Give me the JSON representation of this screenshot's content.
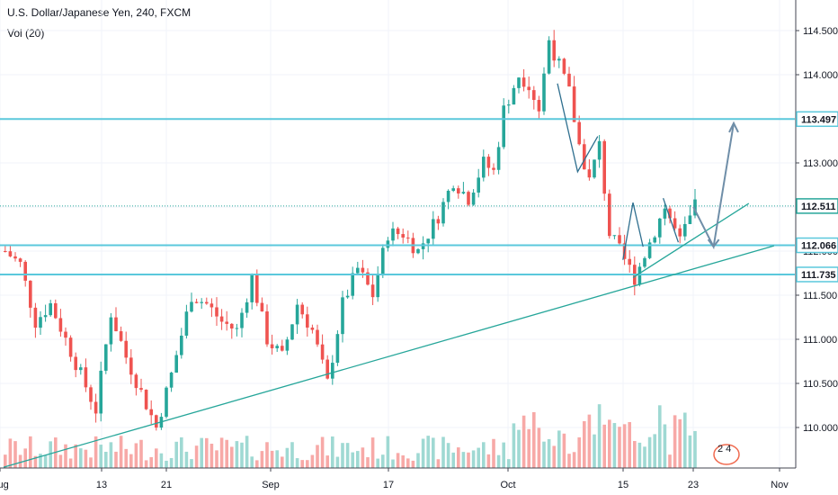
{
  "header": {
    "title": "U.S. Dollar/Japanese Yen, 240, FXCM",
    "volume": "Vol (20)"
  },
  "colors": {
    "up": "#26a69a",
    "down": "#ef5350",
    "line": "#5bc8dc",
    "trend": "#26a69a",
    "arrow": "#6f8ea8"
  },
  "logo": "2 4",
  "chart_data": {
    "type": "candlestick",
    "y_ticks": [
      "114.500",
      "114.000",
      "113.500",
      "113.000",
      "112.500",
      "112.000",
      "111.500",
      "111.000",
      "110.500",
      "110.000"
    ],
    "ylim": [
      109.6,
      114.85
    ],
    "x_ticks": [
      "Aug",
      "13",
      "21",
      "Sep",
      "17",
      "Oct",
      "15",
      "23",
      "Nov"
    ],
    "price_labels": [
      {
        "text": "113.497",
        "value": 113.497,
        "style": "line"
      },
      {
        "text": "112.511",
        "value": 112.511,
        "style": "dotted"
      },
      {
        "text": "112.066",
        "value": 112.066,
        "style": "line"
      },
      {
        "text": "111.735",
        "value": 111.735,
        "style": "line"
      }
    ],
    "close_path": [
      [
        0,
        112.0
      ],
      [
        3,
        111.85
      ],
      [
        6,
        111.2
      ],
      [
        9,
        111.4
      ],
      [
        12,
        111.0
      ],
      [
        15,
        110.6
      ],
      [
        18,
        110.2
      ],
      [
        21,
        111.3
      ],
      [
        24,
        110.8
      ],
      [
        27,
        110.4
      ],
      [
        30,
        110.0
      ],
      [
        33,
        110.6
      ],
      [
        37,
        111.5
      ],
      [
        40,
        111.4
      ],
      [
        43,
        111.2
      ],
      [
        46,
        111.1
      ],
      [
        49,
        111.7
      ],
      [
        52,
        111.0
      ],
      [
        55,
        110.8
      ],
      [
        58,
        111.4
      ],
      [
        61,
        111.1
      ],
      [
        64,
        110.5
      ],
      [
        67,
        111.4
      ],
      [
        70,
        111.8
      ],
      [
        73,
        111.5
      ],
      [
        76,
        112.2
      ],
      [
        79,
        112.2
      ],
      [
        82,
        112.0
      ],
      [
        86,
        112.4
      ],
      [
        89,
        112.8
      ],
      [
        92,
        112.6
      ],
      [
        95,
        113.0
      ],
      [
        97,
        112.9
      ],
      [
        99,
        113.6
      ],
      [
        102,
        114.0
      ],
      [
        104,
        113.9
      ],
      [
        106,
        113.6
      ],
      [
        108,
        114.4
      ],
      [
        110,
        114.1
      ],
      [
        112,
        113.8
      ],
      [
        114,
        113.2
      ],
      [
        116,
        112.8
      ],
      [
        118,
        113.2
      ],
      [
        120,
        112.2
      ],
      [
        123,
        111.9
      ],
      [
        125,
        111.7
      ],
      [
        128,
        112.1
      ],
      [
        131,
        112.5
      ],
      [
        134,
        112.1
      ],
      [
        137,
        112.5
      ]
    ],
    "projection": [
      [
        137,
        112.5
      ],
      [
        141,
        112.05
      ],
      [
        145,
        113.45
      ]
    ],
    "horizontal_levels": [
      113.497,
      112.511,
      112.066,
      111.735
    ],
    "trendlines": [
      {
        "from": [
          0,
          109.55
        ],
        "to": [
          153,
          112.06
        ]
      },
      {
        "from": [
          125,
          111.7
        ],
        "to": [
          148,
          112.54
        ]
      }
    ],
    "pattern_lines": [
      [
        [
          110,
          113.9
        ],
        [
          114,
          112.9
        ],
        [
          118,
          113.3
        ]
      ],
      [
        [
          123,
          111.9
        ],
        [
          125,
          112.55
        ],
        [
          127,
          112.05
        ]
      ],
      [
        [
          131,
          112.6
        ],
        [
          134,
          112.1
        ]
      ]
    ],
    "bars_count": 138
  }
}
